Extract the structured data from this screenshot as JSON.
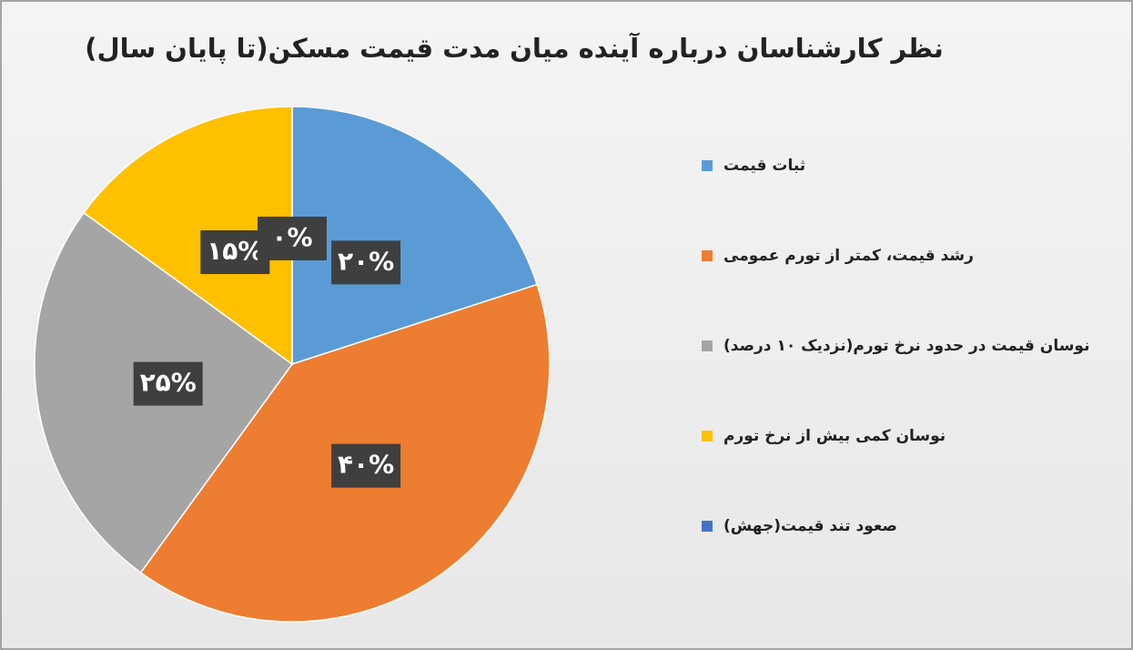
{
  "chart_data": {
    "type": "pie",
    "title": "نظر کارشناسان درباره آینده میان مدت قیمت مسکن(تا پایان سال)",
    "categories": [
      "ثبات قیمت",
      "رشد قیمت، کمتر از تورم عمومی",
      "نوسان قیمت در حدود نرخ تورم(نزدیک ۱۰ درصد)",
      "نوسان کمی بیش از نرخ تورم",
      "صعود تند قیمت(جهش)"
    ],
    "values": [
      20,
      40,
      25,
      15,
      0
    ],
    "value_labels": [
      "۲۰%",
      "۴۰%",
      "۲۵%",
      "۱۵%",
      "۰%"
    ],
    "colors": [
      "#5b9bd5",
      "#ed7d31",
      "#a5a5a5",
      "#ffc000",
      "#4472c4"
    ],
    "legend": "right"
  }
}
